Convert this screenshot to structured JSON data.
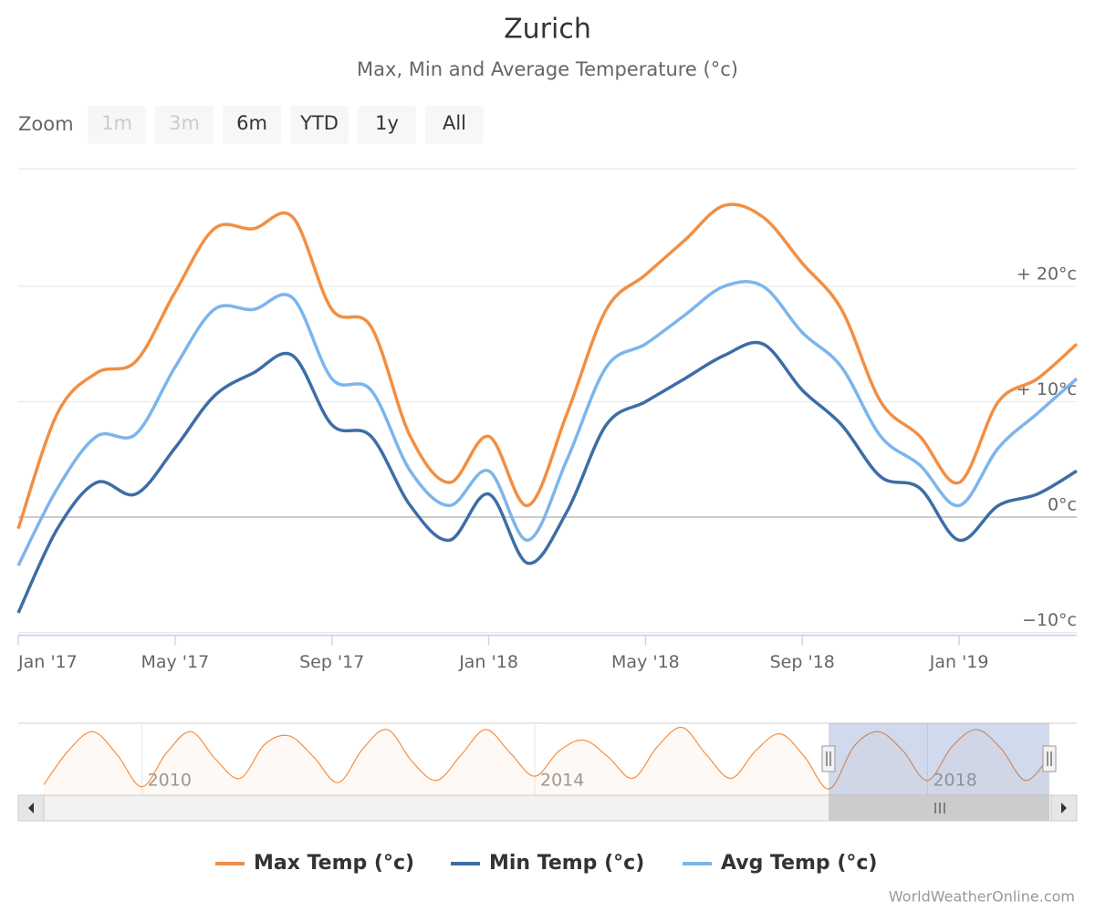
{
  "chart_data": [
    {
      "type": "line",
      "title": "Zurich",
      "subtitle": "Max, Min and Average Temperature (°c)",
      "categories": [
        "Jan '17",
        null,
        null,
        null,
        "May '17",
        null,
        null,
        null,
        "Sep '17",
        null,
        null,
        null,
        "Jan '18",
        null,
        null,
        null,
        "May '18",
        null,
        null,
        null,
        "Sep '18",
        null,
        null,
        null,
        "Jan '19",
        null,
        null,
        null
      ],
      "series": [
        {
          "name": "Max Temp (°c)",
          "color": "#f28f43",
          "values": [
            -1,
            9,
            12.5,
            13.5,
            19.5,
            25,
            25,
            26,
            18,
            16.5,
            7,
            3,
            7,
            1,
            9,
            18,
            21,
            24,
            27,
            26,
            22,
            18,
            10,
            7,
            3,
            10,
            12,
            15
          ]
        },
        {
          "name": "Min Temp (°c)",
          "color": "#3d6da6",
          "values": [
            -8.3,
            -1,
            3,
            2,
            6,
            10.5,
            12.5,
            14,
            8,
            7,
            1,
            -2,
            2,
            -4,
            0.5,
            8,
            10,
            12,
            14,
            15,
            11,
            8,
            3.5,
            2.5,
            -2,
            1,
            2,
            4
          ]
        },
        {
          "name": "Avg Temp (°c)",
          "color": "#7cb5ec",
          "values": [
            -4.2,
            2.5,
            7,
            7.2,
            13,
            18,
            18,
            19,
            12,
            11,
            4,
            1,
            4,
            -2,
            5,
            13,
            15,
            17.5,
            20,
            20,
            16,
            13,
            7,
            4.5,
            1,
            6,
            9,
            12
          ]
        }
      ],
      "ylim": [
        -10,
        30
      ],
      "yticks": [
        {
          "value": -10,
          "label": "−10°c"
        },
        {
          "value": 0,
          "label": "0°c"
        },
        {
          "value": 10,
          "label": "+ 10°c"
        },
        {
          "value": 20,
          "label": "+ 20°c"
        }
      ],
      "grid": true
    },
    {
      "type": "area",
      "color": "#f28f43",
      "x": [
        2009,
        2009.25,
        2009.5,
        2009.75,
        2010,
        2010.25,
        2010.5,
        2010.75,
        2011,
        2011.25,
        2011.5,
        2011.75,
        2012,
        2012.25,
        2012.5,
        2012.75,
        2013,
        2013.25,
        2013.5,
        2013.75,
        2014,
        2014.25,
        2014.5,
        2014.75,
        2015,
        2015.25,
        2015.5,
        2015.75,
        2016,
        2016.25,
        2016.5,
        2016.75,
        2017,
        2017.25,
        2017.5,
        2017.75,
        2018,
        2018.25,
        2018.5,
        2018.75,
        2019,
        2019.25
      ],
      "values": [
        1,
        17,
        26,
        15,
        0,
        16,
        26,
        13,
        4,
        20,
        24,
        14,
        2,
        18,
        27,
        12,
        3,
        15,
        27,
        16,
        5,
        17,
        22,
        14,
        4,
        19,
        28,
        15,
        4,
        17,
        25,
        14,
        -1,
        19,
        26,
        17,
        3,
        19,
        27,
        18,
        3,
        15
      ],
      "xlim": [
        2008.74,
        2019.52
      ],
      "ylim": [
        -4,
        30
      ],
      "xticks": [
        2010,
        2014,
        2018
      ]
    }
  ],
  "zoom": {
    "label": "Zoom",
    "buttons": [
      "1m",
      "3m",
      "6m",
      "YTD",
      "1y",
      "All"
    ]
  },
  "credits": "WorldWeatherOnline.com"
}
